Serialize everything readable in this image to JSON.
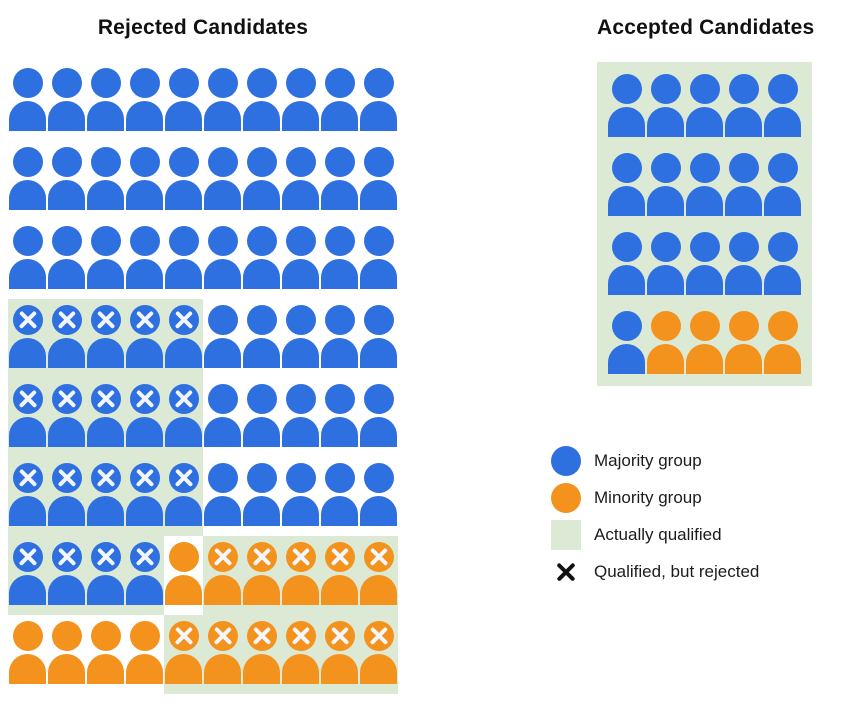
{
  "titles": {
    "rejected": "Rejected Candidates",
    "accepted": "Accepted Candidates"
  },
  "colors": {
    "majority": "#2f70e0",
    "minority": "#f3931e",
    "qualified_bg": "#dce9d5",
    "x_mark": "#f3f6fa",
    "legend_x": "#111111"
  },
  "cell_legend": {
    "B": "majority candidate",
    "O": "minority candidate",
    "X": "marked qualified-but-rejected",
    "Q": "on actually-qualified green background"
  },
  "rejected_grid": {
    "rows": [
      [
        "B",
        "B",
        "B",
        "B",
        "B",
        "B",
        "B",
        "B",
        "B",
        "B"
      ],
      [
        "B",
        "B",
        "B",
        "B",
        "B",
        "B",
        "B",
        "B",
        "B",
        "B"
      ],
      [
        "B",
        "B",
        "B",
        "B",
        "B",
        "B",
        "B",
        "B",
        "B",
        "B"
      ],
      [
        "BXQ",
        "BXQ",
        "BXQ",
        "BXQ",
        "BXQ",
        "B",
        "B",
        "B",
        "B",
        "B"
      ],
      [
        "BXQ",
        "BXQ",
        "BXQ",
        "BXQ",
        "BXQ",
        "B",
        "B",
        "B",
        "B",
        "B"
      ],
      [
        "BXQ",
        "BXQ",
        "BXQ",
        "BXQ",
        "BXQ",
        "B",
        "B",
        "B",
        "B",
        "B"
      ],
      [
        "BXQ",
        "BXQ",
        "BXQ",
        "BXQ",
        "O",
        "OXQ",
        "OXQ",
        "OXQ",
        "OXQ",
        "OXQ"
      ],
      [
        "O",
        "O",
        "O",
        "O",
        "OXQ",
        "OXQ",
        "OXQ",
        "OXQ",
        "OXQ",
        "OXQ"
      ]
    ]
  },
  "accepted_grid": {
    "rows": [
      [
        "BQ",
        "BQ",
        "BQ",
        "BQ",
        "BQ"
      ],
      [
        "BQ",
        "BQ",
        "BQ",
        "BQ",
        "BQ"
      ],
      [
        "BQ",
        "BQ",
        "BQ",
        "BQ",
        "BQ"
      ],
      [
        "BQ",
        "OQ",
        "OQ",
        "OQ",
        "OQ"
      ]
    ]
  },
  "summary": {
    "rejected": {
      "total": 80,
      "majority": 64,
      "minority": 16,
      "qualified_but_rejected_majority": 19,
      "qualified_but_rejected_minority": 11
    },
    "accepted": {
      "total": 20,
      "majority": 16,
      "minority": 4
    }
  },
  "legend": [
    {
      "swatch": "majority-circle",
      "label": "Majority group"
    },
    {
      "swatch": "minority-circle",
      "label": "Minority group"
    },
    {
      "swatch": "qualified-square",
      "label": "Actually qualified"
    },
    {
      "swatch": "x-mark",
      "label": "Qualified, but rejected"
    }
  ]
}
